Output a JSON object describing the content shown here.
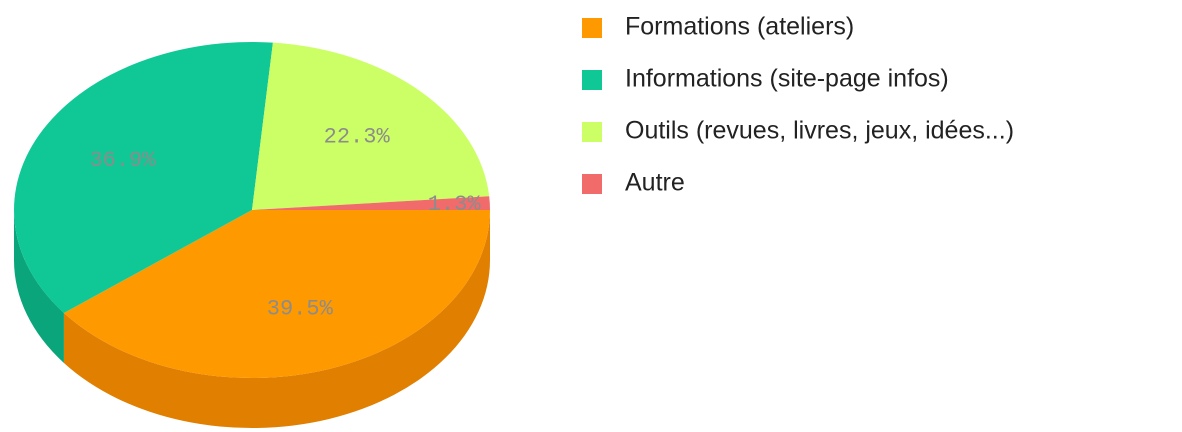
{
  "chart_data": {
    "type": "pie",
    "categories": [
      "Formations (ateliers)",
      "Informations (site-page infos)",
      "Outils (revues, livres, jeux, idées...)",
      "Autre"
    ],
    "values": [
      39.5,
      36.9,
      22.3,
      1.3
    ],
    "value_labels": [
      "39.5%",
      "36.9%",
      "22.3%",
      "1.3%"
    ],
    "colors": [
      "#ff9900",
      "#10c896",
      "#ccff66",
      "#f26b6b"
    ],
    "side_colors": [
      "#e07f00",
      "#0aa57a",
      "#aad94f",
      "#d05555"
    ],
    "legend": "right"
  }
}
